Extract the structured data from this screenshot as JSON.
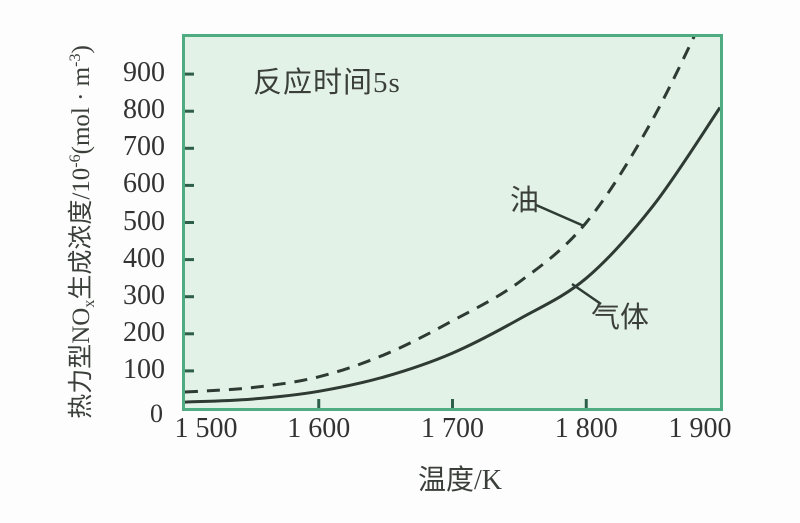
{
  "figure": {
    "annotation_note": "反应时间5s",
    "x_axis_title": "温度/K",
    "y_axis_title": {
      "part1": "热力型NO",
      "part1_sub": "x",
      "part2": "生成浓度/10",
      "part2_sup": "-6",
      "part3": "(mol · m",
      "part3_sup": "-3",
      "part4": ")"
    },
    "origin_label": "0"
  },
  "chart_data": {
    "type": "line",
    "title": "",
    "xlabel": "温度/K",
    "ylabel": "热力型NOx生成浓度/10-6(mol·m-3)",
    "annotation": "反应时间5s",
    "grid": false,
    "legend_position": "inline-annotations",
    "xlim": [
      1500,
      1900
    ],
    "ylim": [
      0,
      1000
    ],
    "x_ticks": [
      {
        "value": 1500,
        "label": "1 500"
      },
      {
        "value": 1600,
        "label": "1 600"
      },
      {
        "value": 1700,
        "label": "1 700"
      },
      {
        "value": 1800,
        "label": "1 800"
      },
      {
        "value": 1900,
        "label": "1 900"
      }
    ],
    "y_ticks": [
      {
        "value": 100,
        "label": "100"
      },
      {
        "value": 200,
        "label": "200"
      },
      {
        "value": 300,
        "label": "300"
      },
      {
        "value": 400,
        "label": "400"
      },
      {
        "value": 500,
        "label": "500"
      },
      {
        "value": 600,
        "label": "600"
      },
      {
        "value": 700,
        "label": "700"
      },
      {
        "value": 800,
        "label": "800"
      },
      {
        "value": 900,
        "label": "900"
      }
    ],
    "x": [
      1500,
      1550,
      1600,
      1650,
      1700,
      1750,
      1800,
      1850,
      1900
    ],
    "series": [
      {
        "name": "油",
        "style": "dashed",
        "values": [
          43,
          55,
          84,
          145,
          235,
          340,
          500,
          780,
          1150
        ]
      },
      {
        "name": "气体",
        "style": "solid",
        "values": [
          16,
          24,
          45,
          85,
          148,
          240,
          350,
          545,
          810
        ]
      }
    ]
  },
  "colors": {
    "plot_background": "#e3f2e6",
    "plot_border": "#4fab81",
    "tick_mark": "#2e5f4b",
    "curve": "#2e3a34",
    "text": "#333333"
  }
}
